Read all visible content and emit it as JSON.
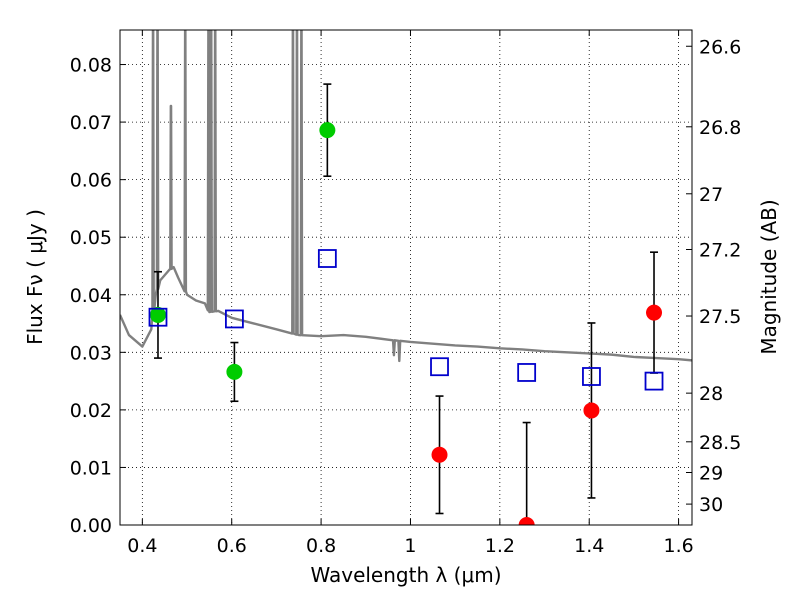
{
  "chart_data": {
    "type": "scatter",
    "xlabel": "Wavelength  λ (μm)",
    "ylabel": "Flux  Fν  ( μJy )",
    "y2label": "Magnitude (AB)",
    "xlim": [
      0.35,
      1.63
    ],
    "ylim": [
      0.0,
      0.086
    ],
    "grid": true,
    "x_ticks": [
      0.4,
      0.6,
      0.8,
      1.0,
      1.2,
      1.4,
      1.6
    ],
    "x_tick_labels": [
      "0.4",
      "0.6",
      "0.8",
      "1",
      "1.2",
      "1.4",
      "1.6"
    ],
    "y_ticks": [
      0.0,
      0.01,
      0.02,
      0.03,
      0.04,
      0.05,
      0.06,
      0.07,
      0.08
    ],
    "y_tick_labels": [
      "0.00",
      "0.01",
      "0.02",
      "0.03",
      "0.04",
      "0.05",
      "0.06",
      "0.07",
      "0.08"
    ],
    "mag_ticks": [
      "26.6",
      "26.8",
      "27",
      "27.2",
      "27.5",
      "28",
      "28.5",
      "29",
      "30"
    ],
    "colors": {
      "model": "#808080",
      "green": "#00cc00",
      "red": "#ff0000",
      "blue_square": "#0000cc",
      "errorbar": "#000000"
    },
    "series": [
      {
        "marker": "circle-green",
        "points": [
          {
            "x": 0.435,
            "y": 0.0365,
            "err": 0.0075
          },
          {
            "x": 0.606,
            "y": 0.0266,
            "err": 0.0051
          },
          {
            "x": 0.814,
            "y": 0.0686,
            "err": 0.008
          }
        ]
      },
      {
        "marker": "circle-red",
        "points": [
          {
            "x": 1.065,
            "y": 0.0122,
            "err": 0.0102
          },
          {
            "x": 1.26,
            "y": 0.0,
            "err": 0.0178
          },
          {
            "x": 1.405,
            "y": 0.0199,
            "err": 0.0152
          },
          {
            "x": 1.545,
            "y": 0.0369,
            "err": 0.0105
          }
        ]
      },
      {
        "marker": "square-blue",
        "points": [
          {
            "x": 0.435,
            "y": 0.0361
          },
          {
            "x": 0.606,
            "y": 0.0358
          },
          {
            "x": 0.814,
            "y": 0.0463
          },
          {
            "x": 1.065,
            "y": 0.0275
          },
          {
            "x": 1.26,
            "y": 0.0265
          },
          {
            "x": 1.405,
            "y": 0.0258
          },
          {
            "x": 1.545,
            "y": 0.025
          }
        ]
      }
    ],
    "model_spectrum": {
      "continuum": [
        [
          0.35,
          0.0365
        ],
        [
          0.37,
          0.033
        ],
        [
          0.4,
          0.031
        ],
        [
          0.42,
          0.034
        ],
        [
          0.43,
          0.04
        ],
        [
          0.44,
          0.0425
        ],
        [
          0.46,
          0.0443
        ],
        [
          0.47,
          0.0448
        ],
        [
          0.48,
          0.043
        ],
        [
          0.5,
          0.04
        ],
        [
          0.52,
          0.039
        ],
        [
          0.54,
          0.0385
        ],
        [
          0.55,
          0.037
        ],
        [
          0.57,
          0.0372
        ],
        [
          0.6,
          0.036
        ],
        [
          0.65,
          0.035
        ],
        [
          0.7,
          0.034
        ],
        [
          0.75,
          0.033
        ],
        [
          0.8,
          0.0328
        ],
        [
          0.85,
          0.033
        ],
        [
          0.9,
          0.0327
        ],
        [
          0.95,
          0.0322
        ],
        [
          1.0,
          0.0318
        ],
        [
          1.05,
          0.0315
        ],
        [
          1.1,
          0.0312
        ],
        [
          1.15,
          0.031
        ],
        [
          1.2,
          0.0307
        ],
        [
          1.25,
          0.0305
        ],
        [
          1.3,
          0.0302
        ],
        [
          1.35,
          0.03
        ],
        [
          1.4,
          0.0298
        ],
        [
          1.45,
          0.0296
        ],
        [
          1.5,
          0.0292
        ],
        [
          1.55,
          0.029
        ],
        [
          1.6,
          0.0288
        ],
        [
          1.63,
          0.0286
        ]
      ],
      "emission_lines": [
        {
          "x": 0.424,
          "peak": 0.086
        },
        {
          "x": 0.434,
          "peak": 0.086
        },
        {
          "x": 0.464,
          "peak": 0.0728
        },
        {
          "x": 0.496,
          "peak": 0.086
        },
        {
          "x": 0.548,
          "peak": 0.086
        },
        {
          "x": 0.554,
          "peak": 0.086
        },
        {
          "x": 0.563,
          "peak": 0.086
        },
        {
          "x": 0.737,
          "peak": 0.086
        },
        {
          "x": 0.746,
          "peak": 0.086
        },
        {
          "x": 0.756,
          "peak": 0.086
        }
      ],
      "absorption_dips": [
        {
          "x": 0.963,
          "depth": 0.0295
        },
        {
          "x": 0.975,
          "depth": 0.0285
        }
      ]
    }
  }
}
